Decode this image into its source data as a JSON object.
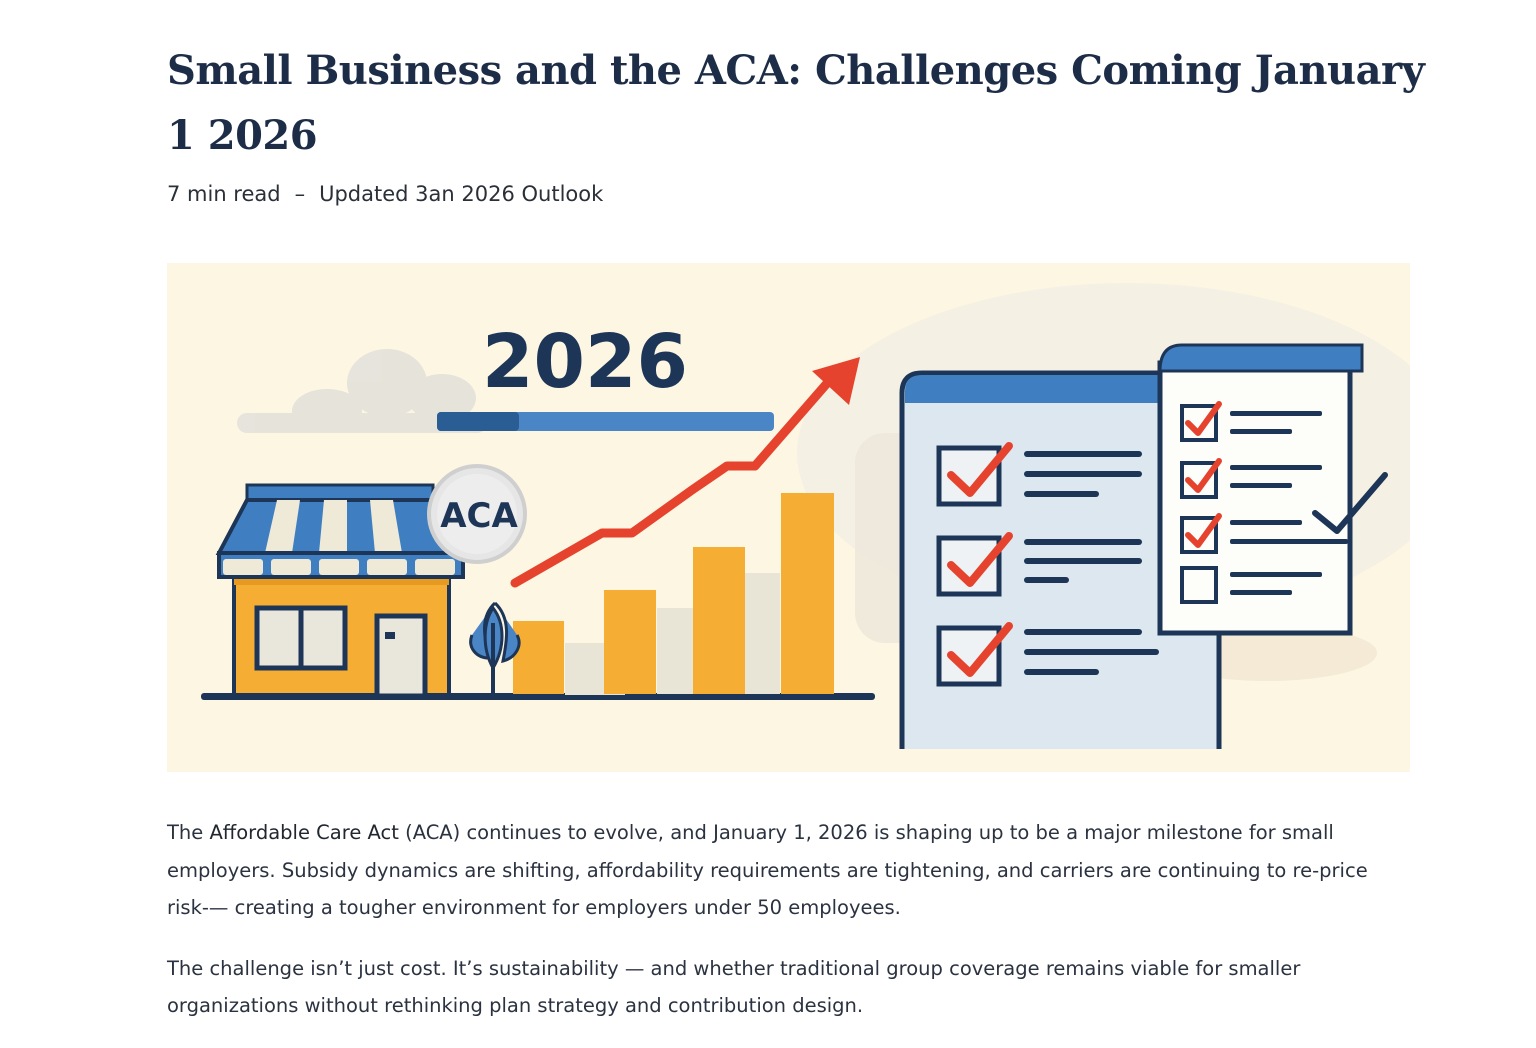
{
  "article": {
    "title": "Small Business and the ACA: Challenges Coming January 1 2026",
    "read_time": "7 min read",
    "separator": "–",
    "updated": "Updated 3an 2026 Outlook"
  },
  "hero": {
    "year_label": "2026",
    "badge_label": "ACA",
    "colors": {
      "background": "#fdf6e3",
      "navy": "#1d3557",
      "blue": "#3f7fc1",
      "orange": "#f5ae33",
      "red": "#e5432d"
    },
    "icons": [
      "storefront-icon",
      "aca-badge-icon",
      "trend-arrow-icon",
      "bar-chart-icon",
      "checklist-icon",
      "tree-icon",
      "cloud-icon"
    ]
  },
  "body": {
    "paragraph1": {
      "lead": "The ",
      "term": "Affordable Care Act",
      "rest": " (ACA) continues to evolve, and January 1, 2026 is shaping up to be a major milestone for small employers. Subsidy dynamics are shifting, affordability requirements are tightening, and carriers are continuing to re-price risk-— creating a tougher environment for employers under 50 employees."
    },
    "paragraph2": "The challenge isn’t just cost. It’s sustainability — and whether traditional group coverage remains viable for smaller organizations without rethinking plan strategy and contribution design."
  }
}
